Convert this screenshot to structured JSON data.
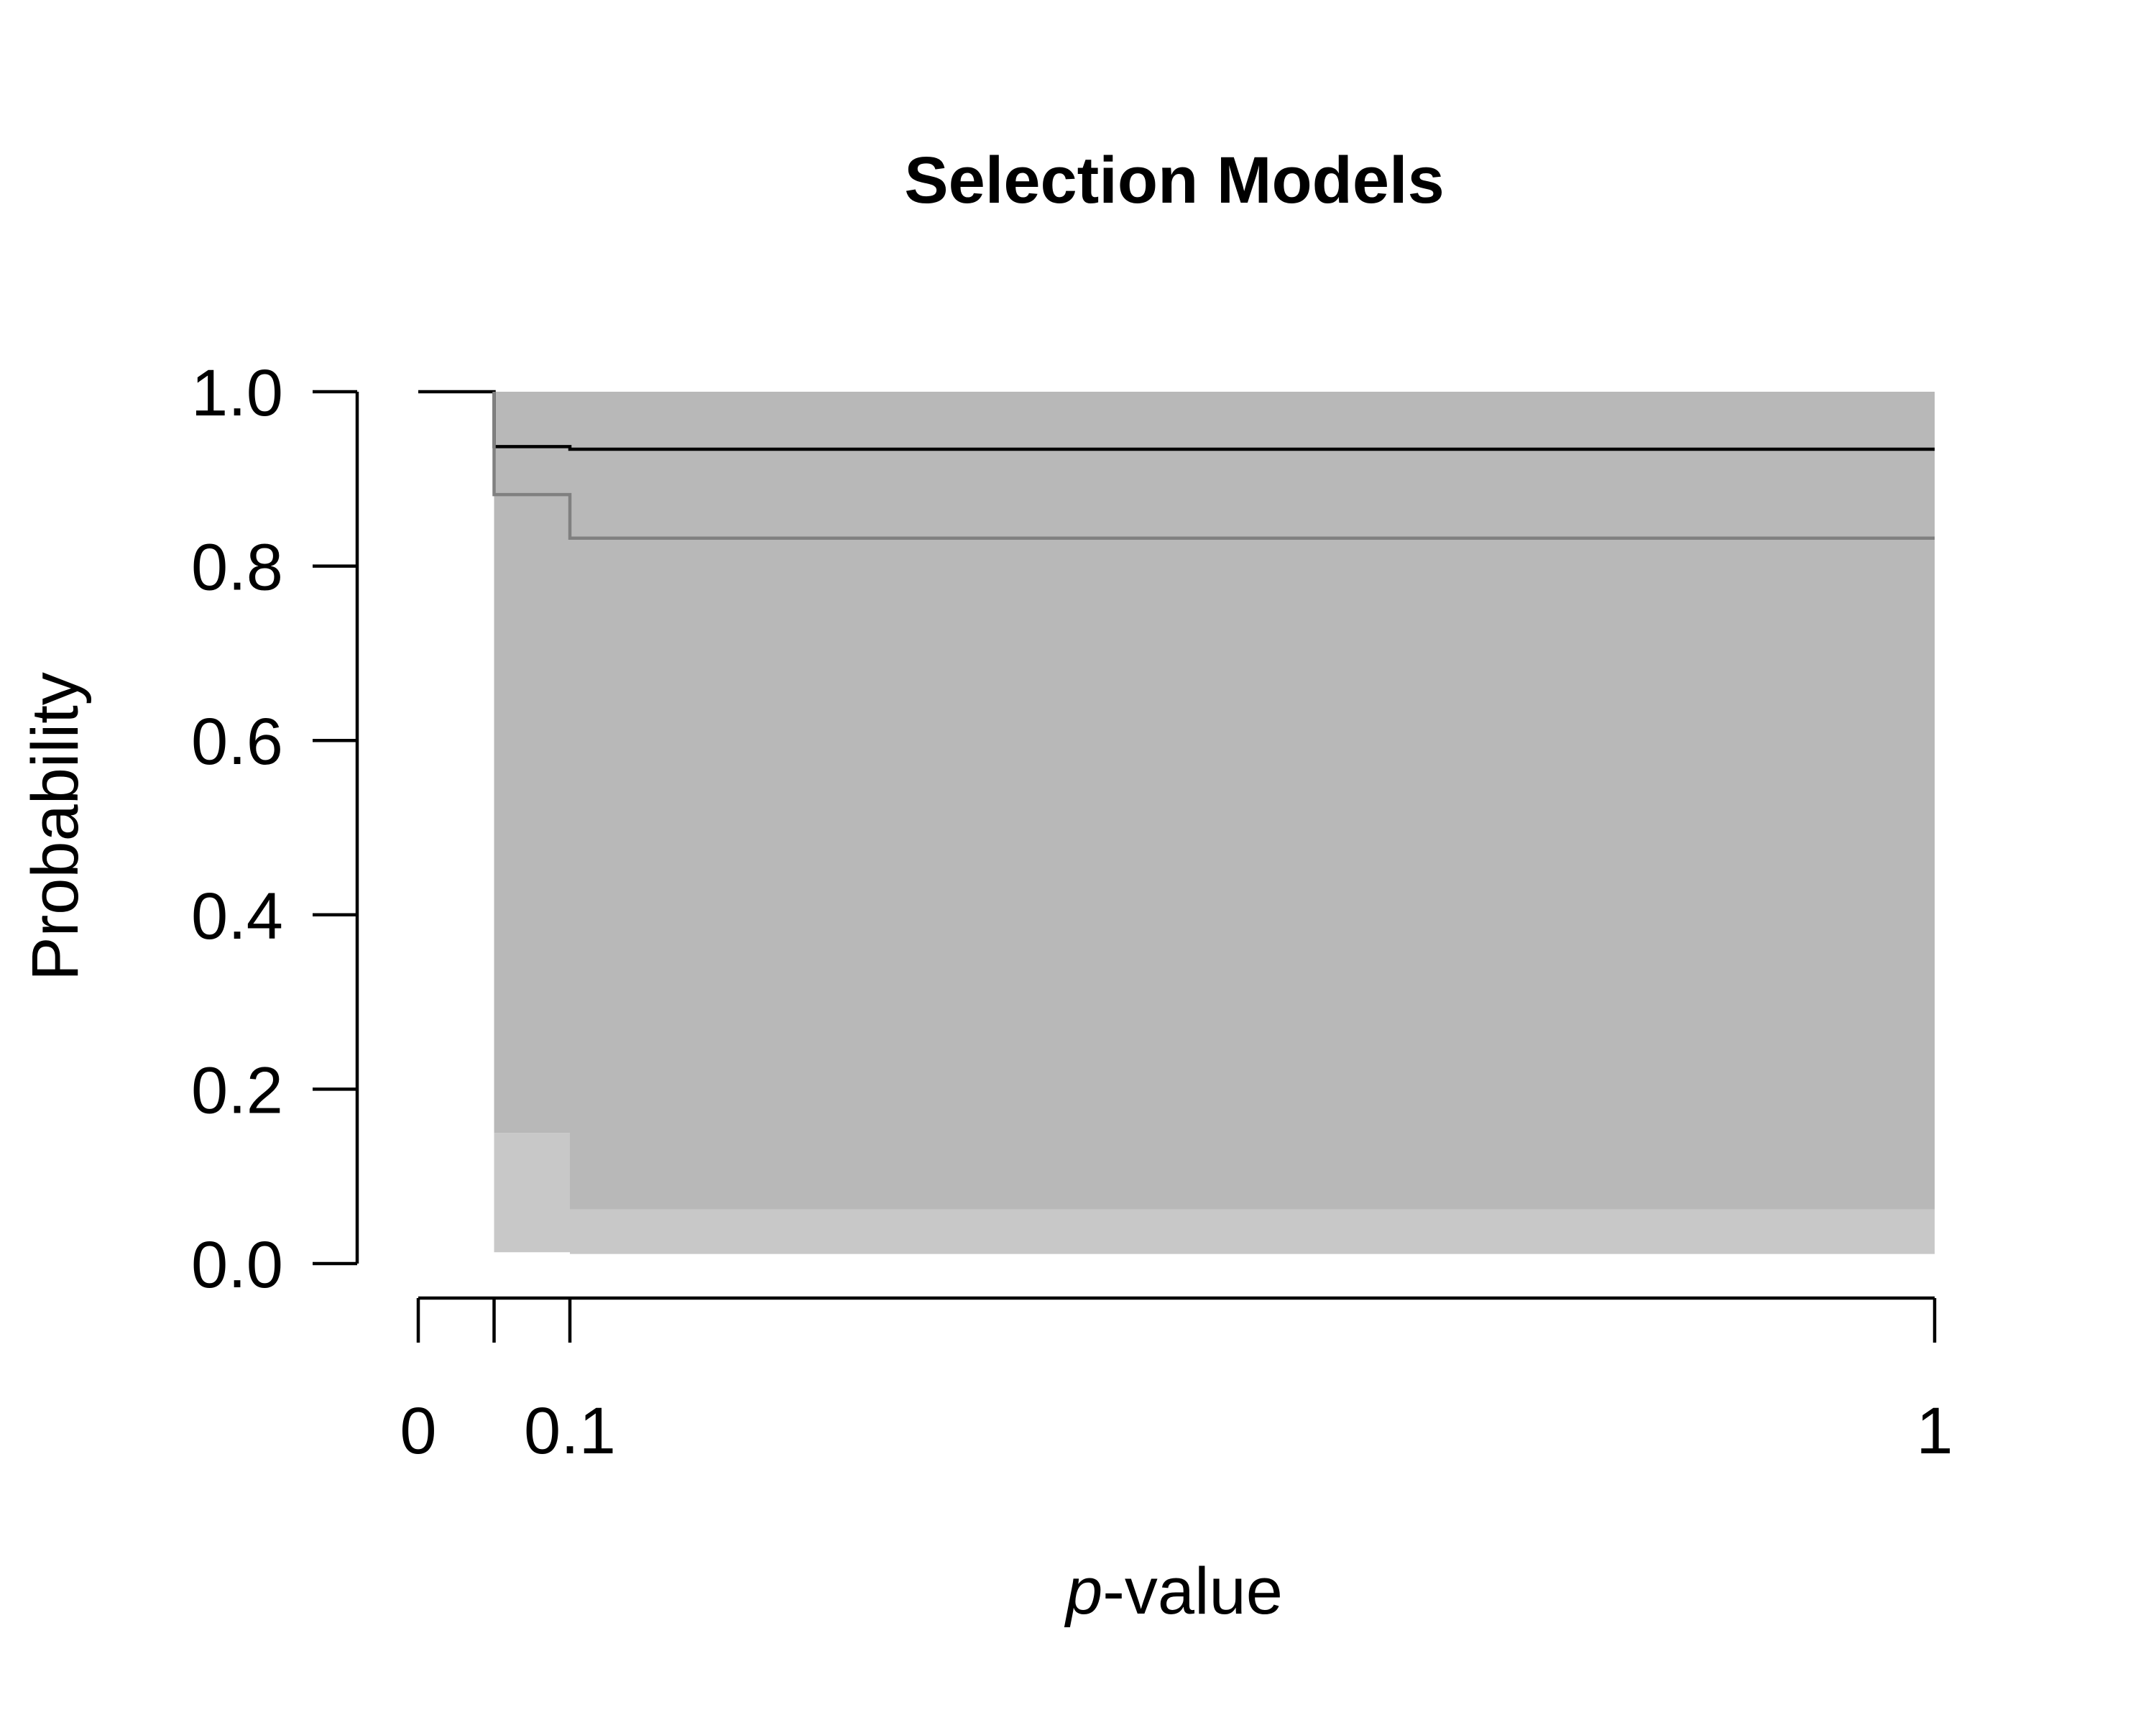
{
  "chart_data": {
    "type": "line",
    "title": "Selection Models",
    "xlabel_italic": "p",
    "xlabel_rest": "-value",
    "ylabel": "Probability",
    "xlim": [
      0,
      1
    ],
    "ylim": [
      0,
      1
    ],
    "x_ticks": [
      0,
      0.05,
      0.1,
      1
    ],
    "x_tick_labels": [
      "0",
      "",
      "0.1",
      "1"
    ],
    "y_ticks": [
      0,
      0.2,
      0.4,
      0.6,
      0.8,
      1.0
    ],
    "y_tick_labels": [
      "0.0",
      "0.2",
      "0.4",
      "0.6",
      "0.8",
      "1.0"
    ],
    "bands": [
      {
        "color": "#c8c8c8",
        "steps": [
          {
            "x": [
              0.05,
              0.1
            ],
            "lower": 0.013,
            "upper": 0.15
          },
          {
            "x": [
              0.1,
              1.0
            ],
            "lower": 0.011,
            "upper": 0.062
          }
        ]
      },
      {
        "color": "#b8b8b8",
        "steps": [
          {
            "x": [
              0.05,
              0.1
            ],
            "lower": 0.15,
            "upper": 1.0
          },
          {
            "x": [
              0.1,
              1.0
            ],
            "lower": 0.062,
            "upper": 1.0
          }
        ]
      }
    ],
    "series": [
      {
        "color": "#000000",
        "x": [
          0,
          0.05,
          0.05,
          0.1,
          0.1,
          1.0
        ],
        "y": [
          1.0,
          1.0,
          0.937,
          0.937,
          0.934,
          0.934
        ]
      },
      {
        "color": "#808080",
        "x": [
          0.05,
          0.05,
          0.1,
          0.1,
          1.0
        ],
        "y": [
          1.0,
          0.882,
          0.882,
          0.832,
          0.832
        ]
      }
    ]
  }
}
